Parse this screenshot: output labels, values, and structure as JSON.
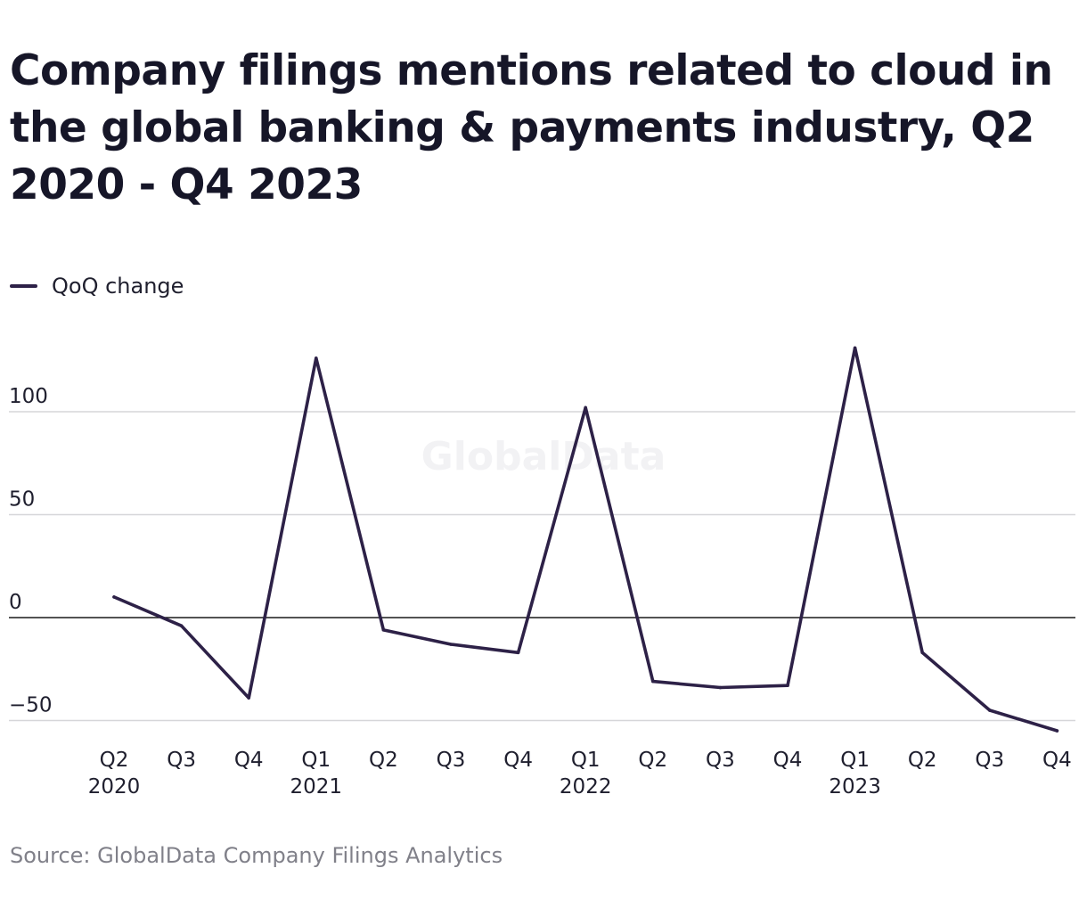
{
  "chart_data": {
    "type": "line",
    "title": "Company filings mentions related to cloud in the global banking & payments industry, Q2 2020 - Q4 2023",
    "categories": [
      {
        "quarter": "Q2",
        "year": "2020"
      },
      {
        "quarter": "Q3",
        "year": ""
      },
      {
        "quarter": "Q4",
        "year": ""
      },
      {
        "quarter": "Q1",
        "year": "2021"
      },
      {
        "quarter": "Q2",
        "year": ""
      },
      {
        "quarter": "Q3",
        "year": ""
      },
      {
        "quarter": "Q4",
        "year": ""
      },
      {
        "quarter": "Q1",
        "year": "2022"
      },
      {
        "quarter": "Q2",
        "year": ""
      },
      {
        "quarter": "Q3",
        "year": ""
      },
      {
        "quarter": "Q4",
        "year": ""
      },
      {
        "quarter": "Q1",
        "year": "2023"
      },
      {
        "quarter": "Q2",
        "year": ""
      },
      {
        "quarter": "Q3",
        "year": ""
      },
      {
        "quarter": "Q4",
        "year": ""
      }
    ],
    "series": [
      {
        "name": "QoQ change",
        "color": "#2d2147",
        "values": [
          10,
          -4,
          -39,
          126,
          -6,
          -13,
          -17,
          102,
          -31,
          -34,
          -33,
          131,
          -17,
          -45,
          -55
        ]
      }
    ],
    "yticks": [
      -50,
      0,
      50,
      100
    ],
    "ytick_labels": [
      "−50",
      "0",
      "50",
      "100"
    ],
    "ylim": [
      -55,
      131
    ],
    "grid": true,
    "legend_position": "top-left",
    "xlabel": "",
    "ylabel": ""
  },
  "watermark": "GlobalData",
  "source": "Source: GlobalData Company Filings Analytics"
}
